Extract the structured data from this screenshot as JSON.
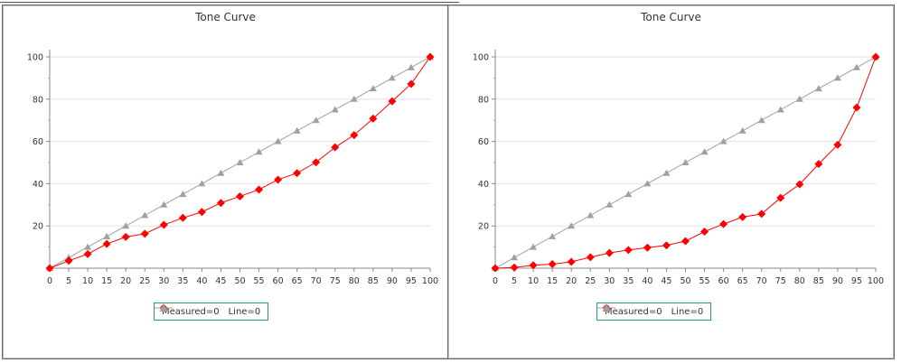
{
  "chart_data": [
    {
      "type": "line",
      "title": "Tone Curve",
      "xlabel": "",
      "ylabel": "",
      "x": [
        0,
        5,
        10,
        15,
        20,
        25,
        30,
        35,
        40,
        45,
        50,
        55,
        60,
        65,
        70,
        75,
        80,
        85,
        90,
        95,
        100
      ],
      "xticks": [
        "0",
        "5",
        "10",
        "15",
        "20",
        "25",
        "30",
        "35",
        "40",
        "45",
        "50",
        "55",
        "60",
        "65",
        "70",
        "75",
        "80",
        "85",
        "90",
        "95",
        "100"
      ],
      "yticks": [
        "20",
        "40",
        "60",
        "80",
        "100"
      ],
      "xlim": [
        0,
        100
      ],
      "ylim": [
        0,
        100
      ],
      "grid": "horizontal",
      "legend_position": "bottom-center",
      "series": [
        {
          "name": "Measured=0",
          "color": "#ff0000",
          "marker": "diamond",
          "values": [
            0,
            3.5,
            6.7,
            11.5,
            14.8,
            16.3,
            20.5,
            23.8,
            26.6,
            30.9,
            34,
            37.2,
            41.9,
            45,
            50.1,
            57.2,
            63,
            70.8,
            79,
            87.2,
            100
          ]
        },
        {
          "name": "Line=0",
          "color": "#a0a0a0",
          "marker": "triangle",
          "values": [
            0,
            5,
            10,
            15,
            20,
            25,
            30,
            35,
            40,
            45,
            50,
            55,
            60,
            65,
            70,
            75,
            80,
            85,
            90,
            95,
            100
          ]
        }
      ]
    },
    {
      "type": "line",
      "title": "Tone Curve",
      "xlabel": "",
      "ylabel": "",
      "x": [
        0,
        5,
        10,
        15,
        20,
        25,
        30,
        35,
        40,
        45,
        50,
        55,
        60,
        65,
        70,
        75,
        80,
        85,
        90,
        95,
        100
      ],
      "xticks": [
        "0",
        "5",
        "10",
        "15",
        "20",
        "25",
        "30",
        "35",
        "40",
        "45",
        "50",
        "55",
        "60",
        "65",
        "70",
        "75",
        "80",
        "85",
        "90",
        "95",
        "100"
      ],
      "yticks": [
        "20",
        "40",
        "60",
        "80",
        "100"
      ],
      "xlim": [
        0,
        100
      ],
      "ylim": [
        0,
        100
      ],
      "grid": "horizontal",
      "legend_position": "bottom-center",
      "series": [
        {
          "name": "Measured=0",
          "color": "#ff0000",
          "marker": "diamond",
          "values": [
            0,
            0.3,
            1.4,
            1.9,
            3,
            5.2,
            7.2,
            8.6,
            9.7,
            10.8,
            12.8,
            17.3,
            20.9,
            24.2,
            25.7,
            33.3,
            39.7,
            49.3,
            58.4,
            76,
            100
          ]
        },
        {
          "name": "Line=0",
          "color": "#a0a0a0",
          "marker": "triangle",
          "values": [
            0,
            5,
            10,
            15,
            20,
            25,
            30,
            35,
            40,
            45,
            50,
            55,
            60,
            65,
            70,
            75,
            80,
            85,
            90,
            95,
            100
          ]
        }
      ]
    }
  ]
}
